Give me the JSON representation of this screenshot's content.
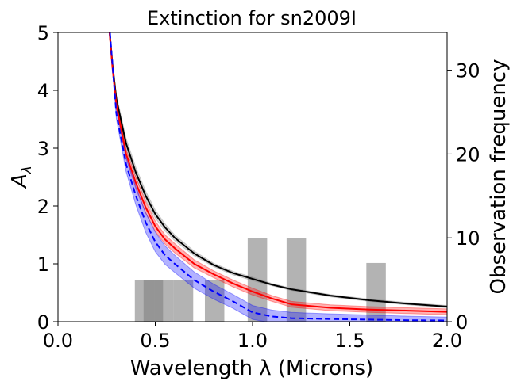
{
  "chart_data": {
    "type": "line",
    "title": "Extinction for sn2009I",
    "xlabel": "Wavelength λ (Microns)",
    "ylabel": "A_λ",
    "ylabel_main": "A",
    "ylabel_sub": "λ",
    "y2label": "Observation frequency",
    "xlim": [
      0.0,
      2.0
    ],
    "ylim": [
      0,
      5
    ],
    "y2lim": [
      0,
      34.5
    ],
    "x_ticks": [
      0.0,
      0.5,
      1.0,
      1.5,
      2.0
    ],
    "x_tick_labels": [
      "0.0",
      "0.5",
      "1.0",
      "1.5",
      "2.0"
    ],
    "y_ticks": [
      0,
      1,
      2,
      3,
      4,
      5
    ],
    "y_tick_labels": [
      "0",
      "1",
      "2",
      "3",
      "4",
      "5"
    ],
    "y2_ticks": [
      0,
      10,
      20,
      30
    ],
    "y2_tick_labels": [
      "0",
      "10",
      "20",
      "30"
    ],
    "grid": false,
    "x": [
      0.22,
      0.24,
      0.26,
      0.28,
      0.3,
      0.35,
      0.4,
      0.45,
      0.5,
      0.55,
      0.6,
      0.7,
      0.8,
      0.9,
      1.0,
      1.1,
      1.2,
      1.4,
      1.6,
      1.8,
      2.0
    ],
    "series": [
      {
        "color": "#000000",
        "dash": "solid",
        "band_color": "#808080",
        "band_half_width": [
          0.05,
          0.05,
          0.05,
          0.06,
          0.07,
          0.09,
          0.09,
          0.08,
          0.07,
          0.06,
          0.05,
          0.04,
          0.03,
          0.03,
          0.03,
          0.02,
          0.02,
          0.02,
          0.02,
          0.02,
          0.02
        ],
        "values": [
          7.6,
          6.2,
          5.2,
          4.45,
          3.85,
          3.08,
          2.58,
          2.18,
          1.86,
          1.63,
          1.45,
          1.18,
          0.98,
          0.84,
          0.74,
          0.64,
          0.56,
          0.45,
          0.37,
          0.31,
          0.26
        ]
      },
      {
        "color": "#ff0000",
        "dash": "solid",
        "band_color": "#ff0000",
        "band_half_width": [
          0.05,
          0.05,
          0.05,
          0.06,
          0.07,
          0.08,
          0.1,
          0.1,
          0.09,
          0.08,
          0.08,
          0.07,
          0.06,
          0.06,
          0.06,
          0.05,
          0.05,
          0.05,
          0.05,
          0.05,
          0.05
        ],
        "values": [
          7.6,
          6.2,
          5.2,
          4.4,
          3.75,
          2.9,
          2.4,
          1.98,
          1.65,
          1.42,
          1.27,
          1.0,
          0.82,
          0.66,
          0.52,
          0.4,
          0.3,
          0.24,
          0.21,
          0.19,
          0.17
        ]
      },
      {
        "color": "#0000ff",
        "dash": "dashed",
        "band_color": "#0000ff",
        "band_half_width": [
          0.06,
          0.06,
          0.06,
          0.07,
          0.09,
          0.13,
          0.16,
          0.17,
          0.17,
          0.16,
          0.15,
          0.14,
          0.13,
          0.12,
          0.12,
          0.11,
          0.1,
          0.09,
          0.08,
          0.07,
          0.06
        ],
        "values": [
          7.7,
          6.3,
          5.3,
          4.45,
          3.6,
          2.72,
          2.18,
          1.72,
          1.38,
          1.15,
          1.0,
          0.72,
          0.52,
          0.35,
          0.16,
          0.09,
          0.06,
          0.045,
          0.035,
          0.025,
          0.02
        ]
      }
    ],
    "frequency_bars": {
      "color": "#808080",
      "opacity": 0.6,
      "centers": [
        0.445,
        0.49,
        0.545,
        0.645,
        0.805,
        1.025,
        1.225,
        1.635
      ],
      "width": 0.1,
      "values": [
        5,
        5,
        5,
        5,
        5,
        10,
        10,
        7
      ]
    }
  }
}
